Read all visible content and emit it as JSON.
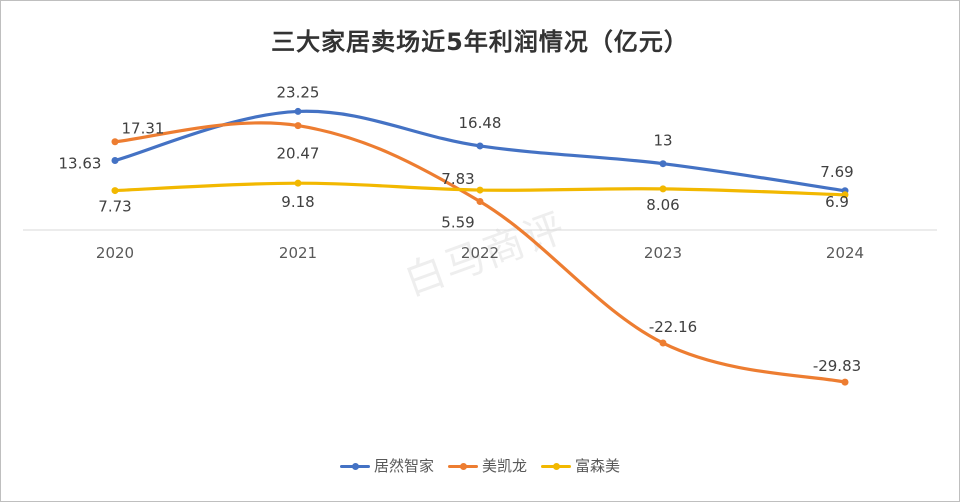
{
  "chart_data": {
    "type": "line",
    "title": "三大家居卖场近5年利润情况（亿元）",
    "categories": [
      "2020",
      "2021",
      "2022",
      "2023",
      "2024"
    ],
    "series": [
      {
        "name": "居然智家",
        "color": "#4472c4",
        "values": [
          13.63,
          23.25,
          16.48,
          13,
          7.69
        ],
        "labels": [
          "13.63",
          "23.25",
          "16.48",
          "13",
          "7.69"
        ]
      },
      {
        "name": "美凯龙",
        "color": "#ed7d31",
        "values": [
          17.31,
          20.47,
          5.59,
          -22.16,
          -29.83
        ],
        "labels": [
          "17.31",
          "20.47",
          "5.59",
          "-22.16",
          "-29.83"
        ]
      },
      {
        "name": "富森美",
        "color": "#f2b800",
        "values": [
          7.73,
          9.18,
          7.83,
          8.06,
          6.9
        ],
        "labels": [
          "7.73",
          "9.18",
          "7.83",
          "8.06",
          "6.9"
        ]
      }
    ],
    "xlabel": "",
    "ylabel": "",
    "grid": false,
    "legend_position": "bottom"
  },
  "watermark": "白马商评"
}
